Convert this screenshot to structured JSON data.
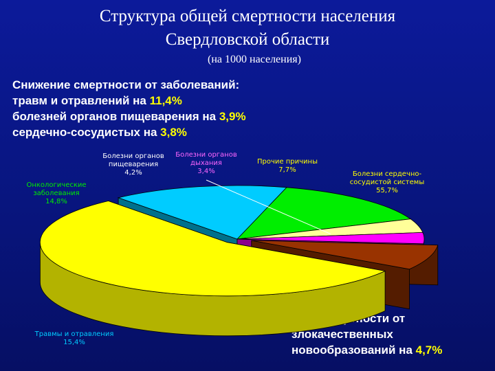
{
  "header": {
    "title_line1": "Структура общей смертности населения",
    "title_line2": "Свердловской области",
    "subtitle": "(на 1000 населения)"
  },
  "note_top": {
    "line1": "Снижение смертности от заболеваний:",
    "line2_text": "травм и отравлений на ",
    "line2_value": "11,4%",
    "line3_text": "болезней органов пищеварения на ",
    "line3_value": "3,9%",
    "line4_text": "сердечно-сосудистых на ",
    "line4_value": "3,8%"
  },
  "note_bottom": {
    "line1": "Рост смертности от",
    "line2": "злокачественных",
    "line3_text": "новообразований на ",
    "line3_value": "4,7%"
  },
  "chart_data": {
    "type": "pie",
    "title": "Структура общей смертности населения Свердловской области",
    "categories": [
      "Болезни сердечно-сосудистой системы",
      "Травмы и отравления",
      "Онкологические заболевания",
      "Болезни органов пищеварения",
      "Болезни органов дыхания",
      "Прочие причины"
    ],
    "values": [
      55.7,
      15.4,
      14.8,
      4.2,
      3.4,
      7.7
    ],
    "value_labels": [
      "55,7%",
      "15,4%",
      "14,8%",
      "4,2%",
      "3,4%",
      "7,7%"
    ],
    "label_lines": [
      [
        "Болезни сердечно-",
        "сосудистой системы",
        "55,7%"
      ],
      [
        "Травмы и отравления",
        "15,4%"
      ],
      [
        "Онкологические",
        "заболевания",
        "14,8%"
      ],
      [
        "Болезни органов",
        "пищеварения",
        "4,2%"
      ],
      [
        "Болезни органов",
        "дыхания",
        "3,4%"
      ],
      [
        "Прочие причины",
        "7,7%"
      ]
    ],
    "colors": [
      "#ffff00",
      "#00ccff",
      "#00ee00",
      "#ffff99",
      "#ff00ff",
      "#993300"
    ],
    "label_colors": [
      "#ffff00",
      "#00ccff",
      "#00ee00",
      "#ffffff",
      "#ff66ff",
      "#ffff00"
    ],
    "exploded": [
      true,
      false,
      false,
      false,
      false,
      true
    ],
    "legend": "none"
  }
}
